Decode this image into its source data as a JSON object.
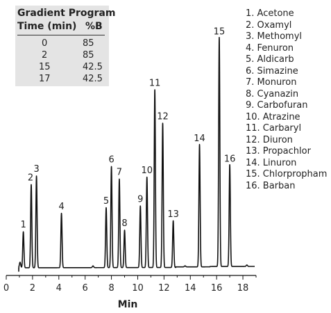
{
  "gradient_program": {
    "title": "Gradient Program",
    "headers": [
      "Time (min)",
      "%B"
    ],
    "rows": [
      [
        "0",
        "85"
      ],
      [
        "2",
        "85"
      ],
      [
        "15",
        "42.5"
      ],
      [
        "17",
        "42.5"
      ]
    ]
  },
  "legend": [
    "1. Acetone",
    "2. Oxamyl",
    "3. Methomyl",
    "4. Fenuron",
    "5. Aldicarb",
    "6. Simazine",
    "7. Monuron",
    "8. Cyanazin",
    "9. Carbofuran",
    "10. Atrazine",
    "11. Carbaryl",
    "12. Diuron",
    "13. Propachlor",
    "14. Linuron",
    "15. Chlorpropham",
    "16. Barban"
  ],
  "chart_data": {
    "type": "line",
    "xlabel": "Min",
    "ylabel": "",
    "xlim": [
      0,
      19
    ],
    "xticks": [
      0,
      2,
      4,
      6,
      8,
      10,
      12,
      14,
      16,
      18
    ],
    "peaks": [
      {
        "label": "1",
        "x": 1.3,
        "height": 0.155
      },
      {
        "label": "2",
        "x": 1.9,
        "height": 0.358
      },
      {
        "label": "3",
        "x": 2.3,
        "height": 0.395
      },
      {
        "label": "4",
        "x": 4.2,
        "height": 0.234
      },
      {
        "label": "5",
        "x": 7.6,
        "height": 0.258
      },
      {
        "label": "6",
        "x": 8.0,
        "height": 0.435
      },
      {
        "label": "7",
        "x": 8.6,
        "height": 0.381
      },
      {
        "label": "8",
        "x": 9.0,
        "height": 0.161
      },
      {
        "label": "9",
        "x": 10.2,
        "height": 0.265
      },
      {
        "label": "10",
        "x": 10.7,
        "height": 0.389
      },
      {
        "label": "11",
        "x": 11.3,
        "height": 0.765
      },
      {
        "label": "12",
        "x": 11.9,
        "height": 0.621
      },
      {
        "label": "13",
        "x": 12.7,
        "height": 0.201
      },
      {
        "label": "14",
        "x": 14.7,
        "height": 0.527
      },
      {
        "label": "15",
        "x": 16.2,
        "height": 0.986
      },
      {
        "label": "16",
        "x": 17.0,
        "height": 0.438
      }
    ]
  }
}
